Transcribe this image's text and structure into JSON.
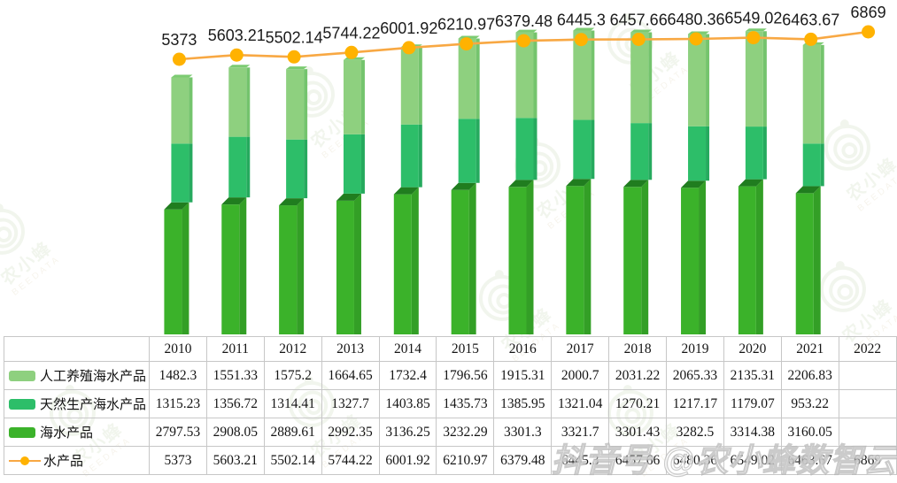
{
  "watermark": {
    "logo_text": "农小蜂",
    "brand": "BEEDATA",
    "credit": "抖音号 @农小蜂数智云"
  },
  "colors": {
    "bar_light": "#8ED07F",
    "bar_light_side": "#74C46D",
    "bar_light_top": "#7CCB72",
    "bar_mid": "#2DBE69",
    "bar_mid_side": "#26AA5E",
    "bar_dark": "#3BB22A",
    "bar_dark_side": "#339F26",
    "bar_dark_top": "#207D1F",
    "line": "#F8A843",
    "dot": "#FFB201",
    "label_text": "#1a1a1a",
    "table_border": "#c7c7c7"
  },
  "chart_data": {
    "type": "bar",
    "subtype": "3d-stacked-bars-with-line-overlay",
    "categories": [
      "2010",
      "2011",
      "2012",
      "2013",
      "2014",
      "2015",
      "2016",
      "2017",
      "2018",
      "2019",
      "2020",
      "2021",
      "2022"
    ],
    "series": [
      {
        "name": "人工养殖海水产品",
        "type": "bar",
        "stack_order": "top",
        "values": [
          1482.3,
          1551.33,
          1575.2,
          1664.65,
          1732.4,
          1796.56,
          1915.31,
          2000.7,
          2031.22,
          2065.33,
          2135.31,
          2206.83,
          null
        ]
      },
      {
        "name": "天然生产海水产品",
        "type": "bar",
        "stack_order": "middle",
        "values": [
          1315.23,
          1356.72,
          1314.41,
          1327.7,
          1403.85,
          1435.73,
          1385.95,
          1321.04,
          1270.21,
          1217.17,
          1179.07,
          953.22,
          null
        ]
      },
      {
        "name": "海水产品",
        "type": "bar",
        "stack_order": "bottom",
        "values": [
          2797.53,
          2908.05,
          2889.61,
          2992.35,
          3136.25,
          3232.29,
          3301.3,
          3321.7,
          3301.43,
          3282.5,
          3314.38,
          3160.05,
          null
        ]
      },
      {
        "name": "水产品",
        "type": "line",
        "values": [
          5373,
          5603.21,
          5502.14,
          5744.22,
          6001.92,
          6210.97,
          6379.48,
          6445.3,
          6457.66,
          6480.36,
          6549.02,
          6463.67,
          6869
        ]
      }
    ],
    "point_labels": [
      "5373",
      "5603.21",
      "5502.14",
      "5744.22",
      "6001.92",
      "6210.97",
      "6379.48",
      "6445.3",
      "6457.66",
      "6480.36",
      "6549.02",
      "6463.67",
      "6869"
    ],
    "title": "",
    "xlabel": "",
    "ylabel": "",
    "grid": false,
    "legend_position": "left-column-of-table"
  },
  "table": {
    "years": [
      "2010",
      "2011",
      "2012",
      "2013",
      "2014",
      "2015",
      "2016",
      "2017",
      "2018",
      "2019",
      "2020",
      "2021",
      "2022"
    ],
    "rows": [
      {
        "label": "人工养殖海水产品",
        "swatch": "light",
        "values": [
          "1482.3",
          "1551.33",
          "1575.2",
          "1664.65",
          "1732.4",
          "1796.56",
          "1915.31",
          "2000.7",
          "2031.22",
          "2065.33",
          "2135.31",
          "2206.83",
          ""
        ]
      },
      {
        "label": "天然生产海水产品",
        "swatch": "mid",
        "values": [
          "1315.23",
          "1356.72",
          "1314.41",
          "1327.7",
          "1403.85",
          "1435.73",
          "1385.95",
          "1321.04",
          "1270.21",
          "1217.17",
          "1179.07",
          "953.22",
          ""
        ]
      },
      {
        "label": "海水产品",
        "swatch": "dark",
        "values": [
          "2797.53",
          "2908.05",
          "2889.61",
          "2992.35",
          "3136.25",
          "3232.29",
          "3301.3",
          "3321.7",
          "3301.43",
          "3282.5",
          "3314.38",
          "3160.05",
          ""
        ]
      },
      {
        "label": "水产品",
        "swatch": "line",
        "values": [
          "5373",
          "5603.21",
          "5502.14",
          "5744.22",
          "6001.92",
          "6210.97",
          "6379.48",
          "6445.3",
          "6457.66",
          "6480.36",
          "6549.02",
          "6463.67",
          "6869"
        ]
      }
    ]
  }
}
